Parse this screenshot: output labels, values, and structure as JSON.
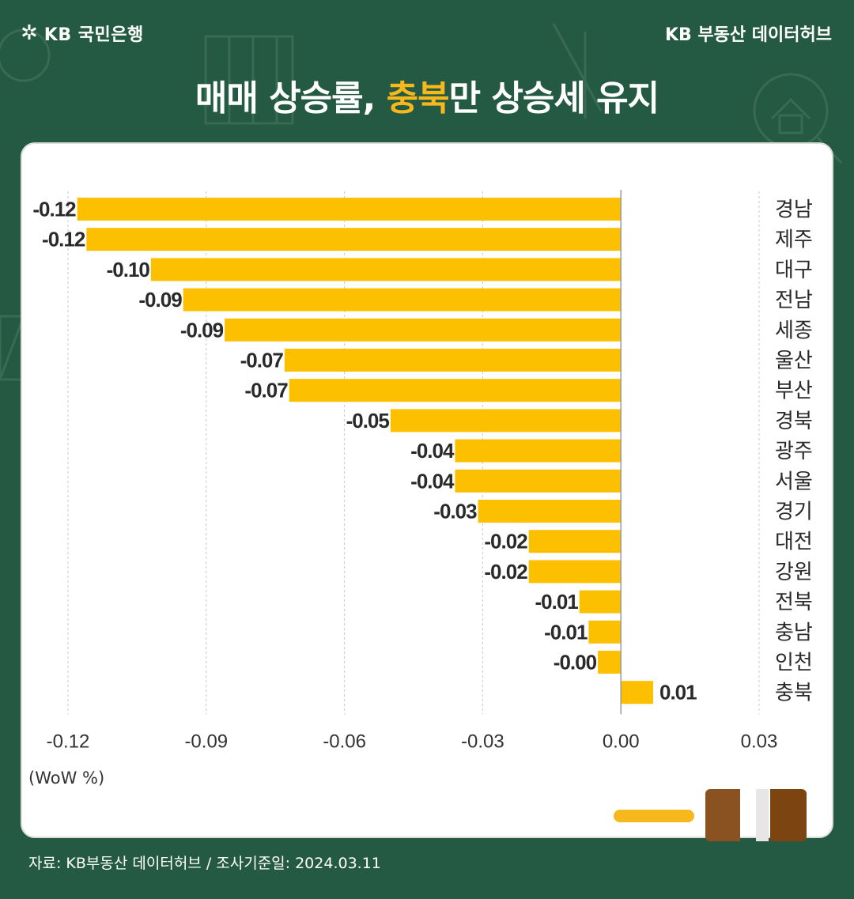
{
  "header": {
    "logo_text": "KB 국민은행",
    "brand": "KB 부동산 데이터허브"
  },
  "title": {
    "part1": "매매 상승률, ",
    "highlight": "충북",
    "part2": "만 상승세 유지"
  },
  "colors": {
    "background": "#245a43",
    "bar": "#fdc000",
    "highlight": "#f6b81c"
  },
  "chart_data": {
    "type": "bar",
    "orientation": "horizontal",
    "categories": [
      "경남",
      "제주",
      "대구",
      "전남",
      "세종",
      "울산",
      "부산",
      "경북",
      "광주",
      "서울",
      "경기",
      "대전",
      "강원",
      "전북",
      "충남",
      "인천",
      "충북"
    ],
    "values": [
      -0.118,
      -0.116,
      -0.102,
      -0.095,
      -0.086,
      -0.073,
      -0.072,
      -0.05,
      -0.036,
      -0.036,
      -0.031,
      -0.02,
      -0.02,
      -0.009,
      -0.007,
      -0.005,
      0.007
    ],
    "value_labels": [
      "-0.12",
      "-0.12",
      "-0.10",
      "-0.09",
      "-0.09",
      "-0.07",
      "-0.07",
      "-0.05",
      "-0.04",
      "-0.04",
      "-0.03",
      "-0.02",
      "-0.02",
      "-0.01",
      "-0.01",
      "-0.00",
      "0.01"
    ],
    "xlim": [
      -0.12,
      0.03
    ],
    "xticks": [
      "-0.12",
      "-0.09",
      "-0.06",
      "-0.03",
      "0.00",
      "0.03"
    ],
    "xtick_values": [
      -0.12,
      -0.09,
      -0.06,
      -0.03,
      0.0,
      0.03
    ],
    "grid": "vertical dashed",
    "unit_label": "(WoW %)"
  },
  "footer": {
    "source": "자료: KB부동산 데이터허브 / 조사기준일: 2024.03.11"
  }
}
